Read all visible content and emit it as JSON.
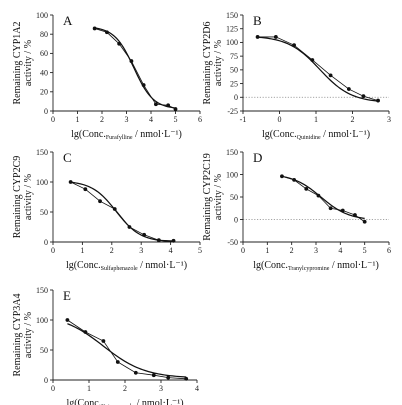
{
  "chart_data": [
    {
      "panel": "A",
      "type": "line",
      "ylabel": [
        "Remaining CYP1A2",
        "activity / %"
      ],
      "xlabel": {
        "pre": "lg(Conc.",
        "sub": "Furafylline",
        "post": " / nmol·L⁻¹)"
      },
      "xlim": [
        0,
        6
      ],
      "ylim": [
        0,
        100
      ],
      "xticks": [
        0,
        1,
        2,
        3,
        4,
        5,
        6
      ],
      "yticks": [
        0,
        20,
        40,
        60,
        80,
        100
      ],
      "zero_line": false,
      "series": [
        {
          "x": [
            1.7,
            2.2,
            2.7,
            3.2,
            3.7,
            4.2,
            4.7,
            5.0
          ],
          "y": [
            86,
            82,
            70,
            52,
            27,
            7,
            6,
            2
          ]
        }
      ],
      "fit": {
        "top": 88,
        "bottom": 2,
        "logIC50": 3.3,
        "hill": 1.1
      }
    },
    {
      "panel": "B",
      "type": "line",
      "ylabel": [
        "Remaining CYP2D6",
        "activity / %"
      ],
      "xlabel": {
        "pre": "lg(Conc.",
        "sub": "Quinidine",
        "post": " / nmol·L⁻¹)"
      },
      "xlim": [
        -1,
        3
      ],
      "ylim": [
        -25,
        150
      ],
      "xticks": [
        -1,
        0,
        1,
        2,
        3
      ],
      "yticks": [
        -25,
        0,
        25,
        50,
        75,
        100,
        125,
        150
      ],
      "zero_line": true,
      "series": [
        {
          "x": [
            -0.6,
            -0.1,
            0.4,
            0.9,
            1.4,
            1.9,
            2.3,
            2.7
          ],
          "y": [
            110,
            110,
            95,
            68,
            40,
            15,
            2,
            -6
          ]
        }
      ],
      "fit": {
        "top": 112,
        "bottom": -10,
        "logIC50": 1.1,
        "hill": 1.0
      }
    },
    {
      "panel": "C",
      "type": "line",
      "ylabel": [
        "Remaining CYP2C9",
        "activity / %"
      ],
      "xlabel": {
        "pre": "lg(Conc.",
        "sub": "Sulfaphenazole",
        "post": " / nmol·L⁻¹)"
      },
      "xlim": [
        0,
        5
      ],
      "ylim": [
        0,
        150
      ],
      "xticks": [
        0,
        1,
        2,
        3,
        4,
        5
      ],
      "yticks": [
        0,
        50,
        100,
        150
      ],
      "zero_line": false,
      "series": [
        {
          "x": [
            0.6,
            1.1,
            1.6,
            2.1,
            2.6,
            3.1,
            3.6,
            4.1
          ],
          "y": [
            100,
            88,
            68,
            55,
            25,
            12,
            3,
            2
          ]
        }
      ],
      "fit": {
        "top": 102,
        "bottom": 0,
        "logIC50": 2.15,
        "hill": 1.05
      }
    },
    {
      "panel": "D",
      "type": "line",
      "ylabel": [
        "Remaining CYP2C19",
        "activity / %"
      ],
      "xlabel": {
        "pre": "lg(Conc.",
        "sub": "Tranylcypromine",
        "post": " / nmol·L⁻¹)"
      },
      "xlim": [
        0,
        6
      ],
      "ylim": [
        -50,
        150
      ],
      "xticks": [
        0,
        1,
        2,
        3,
        4,
        5,
        6
      ],
      "yticks": [
        -50,
        0,
        50,
        100,
        150
      ],
      "zero_line": true,
      "series": [
        {
          "x": [
            1.6,
            2.1,
            2.6,
            3.1,
            3.6,
            4.1,
            4.6,
            5.0
          ],
          "y": [
            96,
            88,
            68,
            53,
            25,
            20,
            10,
            -5
          ]
        }
      ],
      "fit": {
        "top": 102,
        "bottom": -2,
        "logIC50": 3.2,
        "hill": 0.75
      }
    },
    {
      "panel": "E",
      "type": "line",
      "ylabel": [
        "Remaining CYP3A4",
        "activity / %"
      ],
      "xlabel": {
        "pre": "lg(Conc.",
        "sub": "Ketoconazole",
        "post": " / nmol·L⁻¹)"
      },
      "xlim": [
        0,
        4
      ],
      "ylim": [
        0,
        150
      ],
      "xticks": [
        0,
        1,
        2,
        3,
        4
      ],
      "yticks": [
        0,
        50,
        100,
        150
      ],
      "zero_line": false,
      "series": [
        {
          "x": [
            0.4,
            0.9,
            1.4,
            1.8,
            2.3,
            2.8,
            3.2,
            3.7
          ],
          "y": [
            100,
            80,
            65,
            30,
            12,
            8,
            4,
            2
          ]
        }
      ],
      "fit": {
        "top": 110,
        "bottom": 3,
        "logIC50": 1.4,
        "hill": 0.75
      }
    }
  ]
}
